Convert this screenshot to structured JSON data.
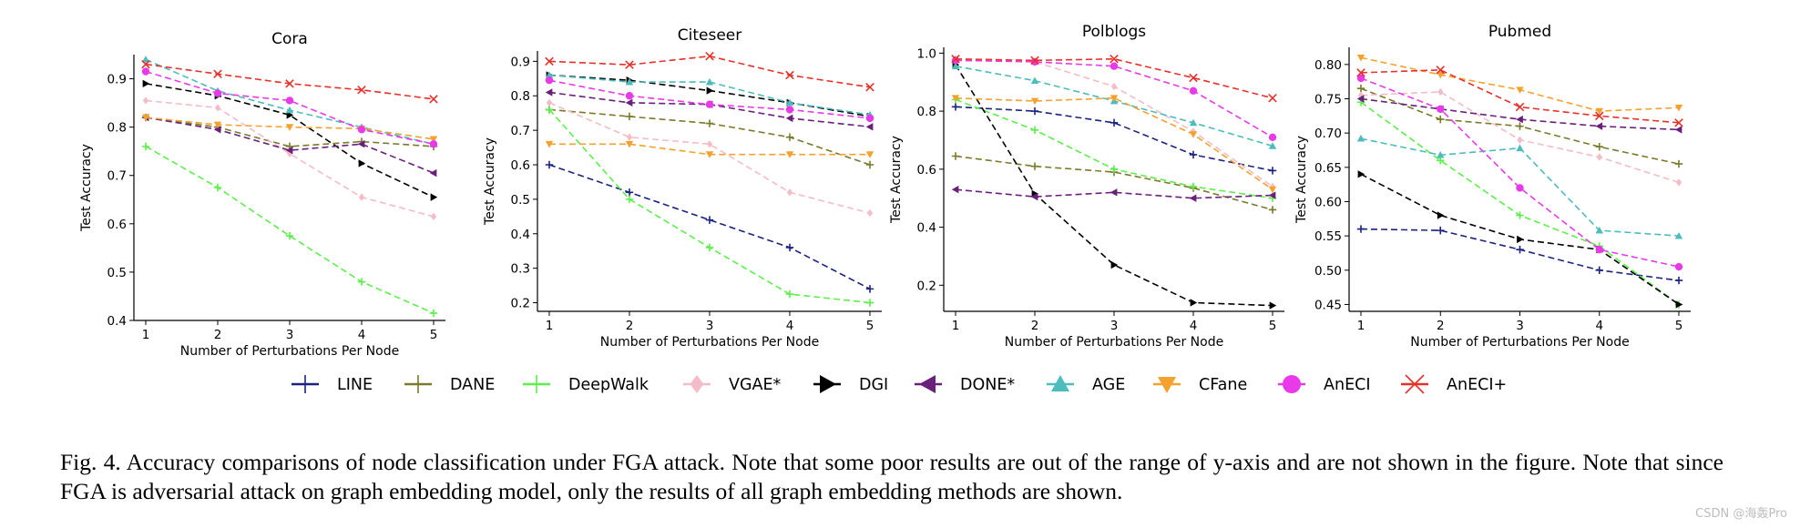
{
  "chart_data": {
    "type": "line",
    "xlabel": "Number of Perturbations Per Node",
    "ylabel": "Test Accuracy",
    "x": [
      1,
      2,
      3,
      4,
      5
    ],
    "legend": [
      {
        "name": "LINE",
        "color": "#1a237e",
        "marker": "plus"
      },
      {
        "name": "DANE",
        "color": "#7a7a2a",
        "marker": "plus"
      },
      {
        "name": "DeepWalk",
        "color": "#5cf04a",
        "marker": "plus"
      },
      {
        "name": "VGAE*",
        "color": "#f4bcc6",
        "marker": "diamond"
      },
      {
        "name": "DGI",
        "color": "#000000",
        "marker": "tri-right"
      },
      {
        "name": "DONE*",
        "color": "#6a1f7a",
        "marker": "tri-left"
      },
      {
        "name": "AGE",
        "color": "#4cbcbc",
        "marker": "tri-up"
      },
      {
        "name": "CFane",
        "color": "#f5a12e",
        "marker": "tri-down"
      },
      {
        "name": "AnECI",
        "color": "#e83ae8",
        "marker": "circle"
      },
      {
        "name": "AnECI+",
        "color": "#e8302a",
        "marker": "x"
      }
    ],
    "panels": [
      {
        "title": "Cora",
        "ylim": [
          0.4,
          0.95
        ],
        "yticks": [
          0.4,
          0.5,
          0.6,
          0.7,
          0.8,
          0.9
        ],
        "ytick_labels": [
          "0.4",
          "0.5",
          "0.6",
          "0.7",
          "0.8",
          "0.9"
        ],
        "series": [
          {
            "name": "LINE",
            "values": [
              null,
              null,
              null,
              null,
              null
            ]
          },
          {
            "name": "DANE",
            "values": [
              0.82,
              0.8,
              0.76,
              0.77,
              0.76
            ]
          },
          {
            "name": "DeepWalk",
            "values": [
              0.76,
              0.675,
              0.575,
              0.48,
              0.415
            ]
          },
          {
            "name": "VGAE*",
            "values": [
              0.855,
              0.84,
              0.745,
              0.655,
              0.615
            ]
          },
          {
            "name": "DGI",
            "values": [
              0.89,
              0.865,
              0.825,
              0.725,
              0.655
            ]
          },
          {
            "name": "DONE*",
            "values": [
              0.82,
              0.795,
              0.752,
              0.765,
              0.705
            ]
          },
          {
            "name": "AGE",
            "values": [
              0.94,
              0.875,
              0.835,
              0.8,
              0.765
            ]
          },
          {
            "name": "CFane",
            "values": [
              0.82,
              0.805,
              0.8,
              0.797,
              0.775
            ]
          },
          {
            "name": "AnECI",
            "values": [
              0.915,
              0.87,
              0.855,
              0.795,
              0.765
            ]
          },
          {
            "name": "AnECI+",
            "values": [
              0.93,
              0.91,
              0.89,
              0.877,
              0.858
            ]
          }
        ]
      },
      {
        "title": "Citeseer",
        "ylim": [
          0.175,
          0.93
        ],
        "yticks": [
          0.2,
          0.3,
          0.4,
          0.5,
          0.6,
          0.7,
          0.8,
          0.9
        ],
        "ytick_labels": [
          "0.2",
          "0.3",
          "0.4",
          "0.5",
          "0.6",
          "0.7",
          "0.8",
          "0.9"
        ],
        "series": [
          {
            "name": "LINE",
            "values": [
              0.6,
              0.52,
              0.44,
              0.36,
              0.24
            ]
          },
          {
            "name": "DANE",
            "values": [
              0.76,
              0.74,
              0.72,
              0.68,
              0.6
            ]
          },
          {
            "name": "DeepWalk",
            "values": [
              0.76,
              0.5,
              0.36,
              0.225,
              0.2
            ]
          },
          {
            "name": "VGAE*",
            "values": [
              0.78,
              0.68,
              0.66,
              0.52,
              0.46
            ]
          },
          {
            "name": "DGI",
            "values": [
              0.86,
              0.845,
              0.815,
              0.78,
              0.74
            ]
          },
          {
            "name": "DONE*",
            "values": [
              0.81,
              0.78,
              0.775,
              0.735,
              0.71
            ]
          },
          {
            "name": "AGE",
            "values": [
              0.86,
              0.84,
              0.84,
              0.78,
              0.745
            ]
          },
          {
            "name": "CFane",
            "values": [
              0.66,
              0.66,
              0.63,
              0.63,
              0.63
            ]
          },
          {
            "name": "AnECI",
            "values": [
              0.845,
              0.8,
              0.775,
              0.76,
              0.735
            ]
          },
          {
            "name": "AnECI+",
            "values": [
              0.9,
              0.89,
              0.915,
              0.86,
              0.825
            ]
          }
        ]
      },
      {
        "title": "Polblogs",
        "ylim": [
          0.11,
          1.02
        ],
        "yticks": [
          0.2,
          0.4,
          0.6,
          0.8,
          1.0
        ],
        "ytick_labels": [
          "0.2",
          "0.4",
          "0.6",
          "0.8",
          "1.0"
        ],
        "series": [
          {
            "name": "LINE",
            "values": [
              0.815,
              0.8,
              0.76,
              0.65,
              0.595
            ]
          },
          {
            "name": "DANE",
            "values": [
              0.645,
              0.61,
              0.59,
              0.535,
              0.46
            ]
          },
          {
            "name": "DeepWalk",
            "values": [
              0.84,
              0.735,
              0.6,
              0.54,
              0.5
            ]
          },
          {
            "name": "VGAE*",
            "values": [
              0.98,
              0.97,
              0.885,
              0.73,
              0.54
            ]
          },
          {
            "name": "DGI",
            "values": [
              0.96,
              0.515,
              0.27,
              0.14,
              0.13
            ]
          },
          {
            "name": "DONE*",
            "values": [
              0.53,
              0.505,
              0.52,
              0.5,
              0.51
            ]
          },
          {
            "name": "AGE",
            "values": [
              0.955,
              0.905,
              0.835,
              0.76,
              0.68
            ]
          },
          {
            "name": "CFane",
            "values": [
              0.845,
              0.835,
              0.845,
              0.72,
              0.53
            ]
          },
          {
            "name": "AnECI",
            "values": [
              0.975,
              0.97,
              0.955,
              0.87,
              0.71
            ]
          },
          {
            "name": "AnECI+",
            "values": [
              0.98,
              0.975,
              0.98,
              0.915,
              0.845
            ]
          }
        ]
      },
      {
        "title": "Pubmed",
        "ylim": [
          0.44,
          0.825
        ],
        "yticks": [
          0.45,
          0.5,
          0.55,
          0.6,
          0.65,
          0.7,
          0.75,
          0.8
        ],
        "ytick_labels": [
          "0.45",
          "0.50",
          "0.55",
          "0.60",
          "0.65",
          "0.70",
          "0.75",
          "0.80"
        ],
        "series": [
          {
            "name": "LINE",
            "values": [
              0.56,
              0.558,
              0.53,
              0.5,
              0.485
            ]
          },
          {
            "name": "DANE",
            "values": [
              0.765,
              0.72,
              0.71,
              0.68,
              0.655
            ]
          },
          {
            "name": "DeepWalk",
            "values": [
              0.745,
              0.66,
              0.58,
              0.535,
              0.45
            ]
          },
          {
            "name": "VGAE*",
            "values": [
              0.755,
              0.76,
              0.69,
              0.665,
              0.628
            ]
          },
          {
            "name": "DGI",
            "values": [
              0.64,
              0.58,
              0.545,
              0.53,
              0.45
            ]
          },
          {
            "name": "DONE*",
            "values": [
              0.75,
              0.735,
              0.72,
              0.71,
              0.705
            ]
          },
          {
            "name": "AGE",
            "values": [
              0.692,
              0.668,
              0.678,
              0.558,
              0.55
            ]
          },
          {
            "name": "CFane",
            "values": [
              0.81,
              0.785,
              0.763,
              0.732,
              0.737
            ]
          },
          {
            "name": "AnECI",
            "values": [
              0.78,
              0.735,
              0.62,
              0.53,
              0.505
            ]
          },
          {
            "name": "AnECI+",
            "values": [
              0.788,
              0.792,
              0.738,
              0.725,
              0.715
            ]
          }
        ]
      }
    ]
  },
  "caption": {
    "text": "Fig. 4.  Accuracy comparisons of node classification under FGA attack. Note that some poor results are out of the range of y-axis and are not shown in the figure. Note that since FGA is adversarial attack on graph embedding model, only the results of all graph embedding methods are shown."
  },
  "watermark": {
    "text": "CSDN @海轰Pro"
  }
}
